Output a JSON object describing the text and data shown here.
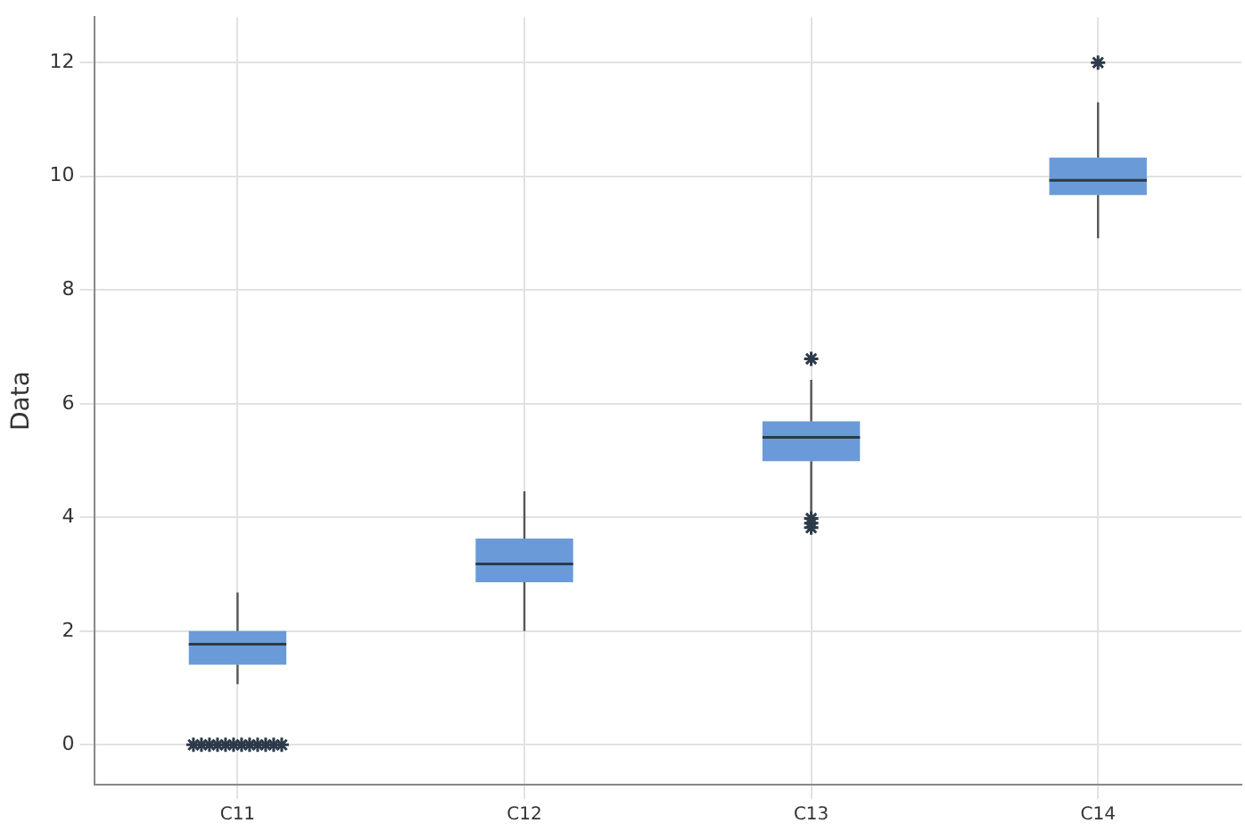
{
  "chart_data": {
    "type": "box",
    "ylabel": "Data",
    "categories": [
      "C11",
      "C12",
      "C13",
      "C14"
    ],
    "boxes": [
      {
        "low": 1.07,
        "q1": 1.41,
        "median": 1.77,
        "q3": 2.0,
        "high": 2.68,
        "outliers": [
          0,
          0,
          0,
          0,
          0,
          0,
          0,
          0,
          0,
          0,
          0,
          0
        ]
      },
      {
        "low": 2.0,
        "q1": 2.86,
        "median": 3.18,
        "q3": 3.63,
        "high": 4.46
      },
      {
        "low": 4.08,
        "q1": 4.99,
        "median": 5.41,
        "q3": 5.69,
        "high": 6.42,
        "outliers": [
          6.79,
          3.98,
          3.9,
          3.82
        ]
      },
      {
        "low": 8.91,
        "q1": 9.67,
        "median": 9.93,
        "q3": 10.33,
        "high": 11.3,
        "outliers": [
          12.0
        ]
      }
    ],
    "color": "#6a9bd8",
    "marker": "star",
    "ylim": [
      -0.7,
      12.8
    ],
    "yticks": [
      0,
      2,
      4,
      6,
      8,
      10,
      12
    ],
    "grid": true
  }
}
